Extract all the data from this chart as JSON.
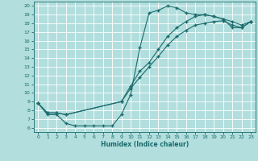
{
  "xlabel": "Humidex (Indice chaleur)",
  "bg_color": "#b2dede",
  "grid_color": "#ffffff",
  "line_color": "#1a6b6b",
  "marker_color": "#1a6b6b",
  "xlim": [
    -0.5,
    23.5
  ],
  "ylim": [
    5.5,
    20.5
  ],
  "yticks": [
    6,
    7,
    8,
    9,
    10,
    11,
    12,
    13,
    14,
    15,
    16,
    17,
    18,
    19,
    20
  ],
  "xticks": [
    0,
    1,
    2,
    3,
    4,
    5,
    6,
    7,
    8,
    9,
    10,
    11,
    12,
    13,
    14,
    15,
    16,
    17,
    18,
    19,
    20,
    21,
    22,
    23
  ],
  "curve1_x": [
    0,
    1,
    2,
    3,
    4,
    5,
    6,
    7,
    8,
    9,
    10,
    11,
    12,
    13,
    14,
    15,
    16,
    17,
    18,
    19,
    20,
    21,
    22,
    23
  ],
  "curve1_y": [
    8.8,
    7.5,
    7.5,
    6.5,
    6.2,
    6.2,
    6.2,
    6.2,
    6.2,
    7.5,
    9.8,
    15.2,
    19.2,
    19.5,
    20.0,
    19.8,
    19.2,
    19.0,
    19.0,
    18.8,
    18.5,
    17.5,
    17.5,
    18.2
  ],
  "curve2_x": [
    0,
    1,
    2,
    3,
    9,
    10,
    11,
    12,
    13,
    14,
    15,
    16,
    17,
    18,
    19,
    20,
    21,
    22,
    23
  ],
  "curve2_y": [
    8.8,
    7.7,
    7.7,
    7.5,
    9.0,
    10.8,
    12.5,
    13.5,
    15.0,
    16.5,
    17.5,
    18.2,
    18.8,
    19.0,
    18.8,
    18.5,
    18.2,
    17.8,
    18.2
  ],
  "curve3_x": [
    0,
    1,
    2,
    3,
    9,
    10,
    11,
    12,
    13,
    14,
    15,
    16,
    17,
    18,
    19,
    20,
    21,
    22,
    23
  ],
  "curve3_y": [
    8.8,
    7.7,
    7.7,
    7.5,
    9.0,
    10.5,
    11.8,
    13.0,
    14.2,
    15.5,
    16.5,
    17.2,
    17.8,
    18.0,
    18.2,
    18.3,
    17.8,
    17.5,
    18.2
  ]
}
